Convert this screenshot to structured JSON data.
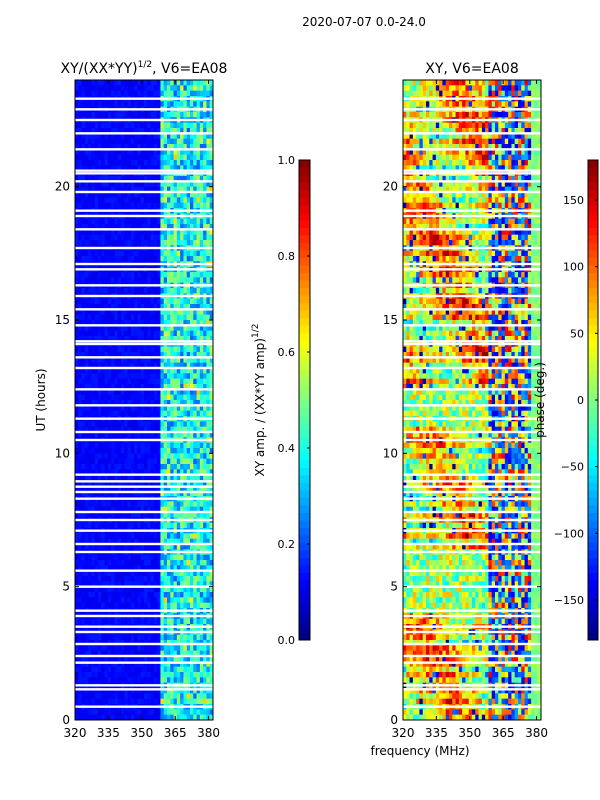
{
  "figure": {
    "suptitle": "2020-07-07 0.0-24.0",
    "shared_xlabel": "frequency (MHz)"
  },
  "colors": {
    "jet": [
      "#00007f",
      "#0000ff",
      "#007fff",
      "#00ffff",
      "#7fff7f",
      "#ffff00",
      "#ff7f00",
      "#ff0000",
      "#7f0000"
    ]
  },
  "chart_data": [
    {
      "type": "heatmap",
      "title_prefix": "XY/(XX*YY)",
      "title_sup": "1/2",
      "title_suffix": ", V6=EA08",
      "xlabel": "",
      "ylabel": "UT (hours)",
      "xlim": [
        320,
        382
      ],
      "ylim": [
        0,
        24
      ],
      "xticks": [
        320,
        335,
        350,
        365,
        380
      ],
      "yticks": [
        0,
        5,
        10,
        15,
        20
      ],
      "colorbar": {
        "label_prefix": "XY amp. / (XX*YY amp)",
        "label_sup": "1/2",
        "range": [
          0.0,
          1.0
        ],
        "ticks": [
          0.0,
          0.2,
          0.4,
          0.6,
          0.8,
          1.0
        ],
        "tick_labels": [
          "0.0",
          "0.2",
          "0.4",
          "0.6",
          "0.8",
          "1.0"
        ]
      },
      "band_start_mhz": 359,
      "gap_hours": [
        0.5,
        1.15,
        1.3,
        2.15,
        2.4,
        2.85,
        3.3,
        3.5,
        3.9,
        4.1,
        5.0,
        5.6,
        6.3,
        6.6,
        7.1,
        7.5,
        7.8,
        8.3,
        8.55,
        8.75,
        8.95,
        9.2,
        10.5,
        10.8,
        11.3,
        11.8,
        12.4,
        13.2,
        13.6,
        14.1,
        14.2,
        14.8,
        15.4,
        15.9,
        16.3,
        16.9,
        17.1,
        17.7,
        18.4,
        18.9,
        19.1,
        19.8,
        20.2,
        20.5,
        20.6,
        21.4,
        22.0,
        22.5,
        22.9,
        23.3
      ]
    },
    {
      "type": "heatmap",
      "title": "XY, V6=EA08",
      "xlabel": "",
      "ylabel": "",
      "xlim": [
        320,
        382
      ],
      "ylim": [
        0,
        24
      ],
      "xticks": [
        320,
        335,
        350,
        365,
        380
      ],
      "yticks": [
        0,
        5,
        10,
        15,
        20
      ],
      "colorbar": {
        "label": "phase (deg.)",
        "range": [
          -180,
          180
        ],
        "ticks": [
          -150,
          -100,
          -50,
          0,
          50,
          100,
          150
        ],
        "tick_labels": [
          "−150",
          "−100",
          "−50",
          "0",
          "50",
          "100",
          "150"
        ]
      },
      "band_start_mhz": 359,
      "gap_hours": [
        0.5,
        1.15,
        1.3,
        2.15,
        2.4,
        2.85,
        3.3,
        3.5,
        3.9,
        4.1,
        5.0,
        5.6,
        6.3,
        6.6,
        7.1,
        7.5,
        7.8,
        8.3,
        8.55,
        8.75,
        8.95,
        9.2,
        10.5,
        10.8,
        11.3,
        11.8,
        12.4,
        13.2,
        13.6,
        14.1,
        14.2,
        14.8,
        15.4,
        15.9,
        16.3,
        16.9,
        17.1,
        17.7,
        18.4,
        18.9,
        19.1,
        19.8,
        20.2,
        20.5,
        20.6,
        21.4,
        22.0,
        22.5,
        22.9,
        23.3
      ]
    }
  ]
}
